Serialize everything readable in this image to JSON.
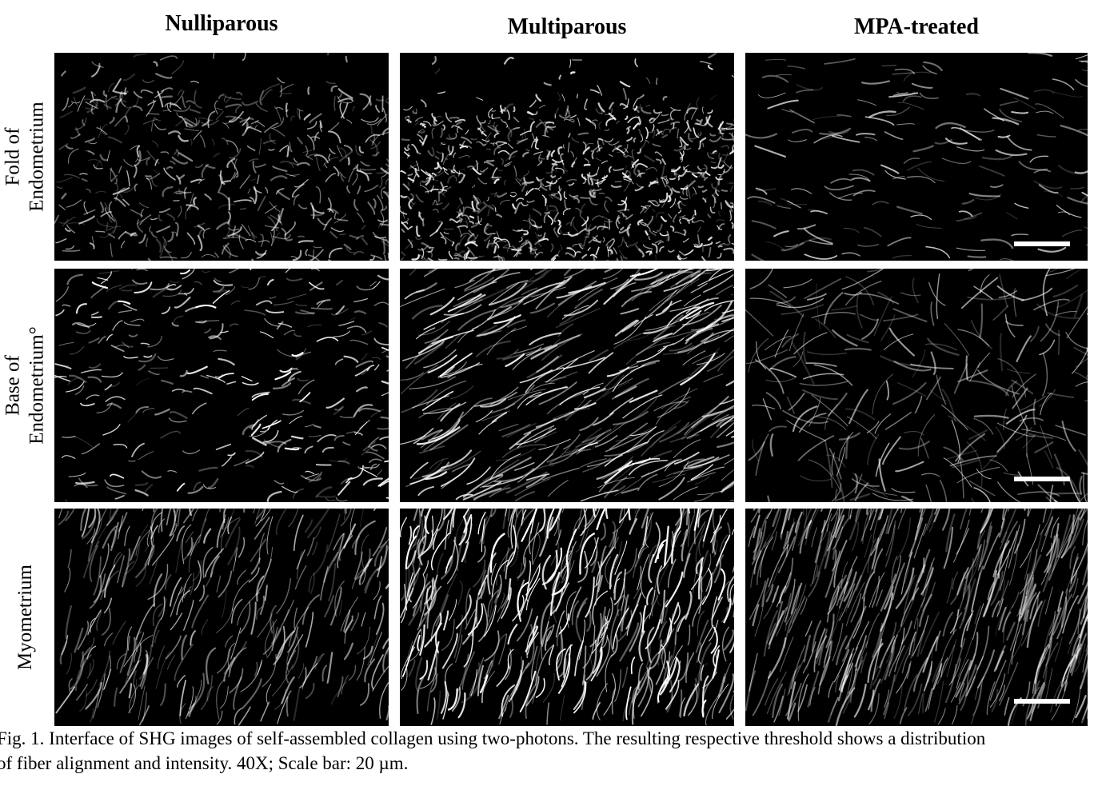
{
  "columns": [
    "Nulliparous",
    "Multiparous",
    "MPA-treated"
  ],
  "rows": [
    "Fold of\nEndometrium",
    "Base of\nEndometrium°",
    "Myometrium"
  ],
  "caption": "Fig. 1. Interface of SHG images of self-assembled collagen using two-photons.  The resulting respective threshold shows a distribution\nof fiber alignment and intensity. 40X; Scale bar: 20 µm."
}
